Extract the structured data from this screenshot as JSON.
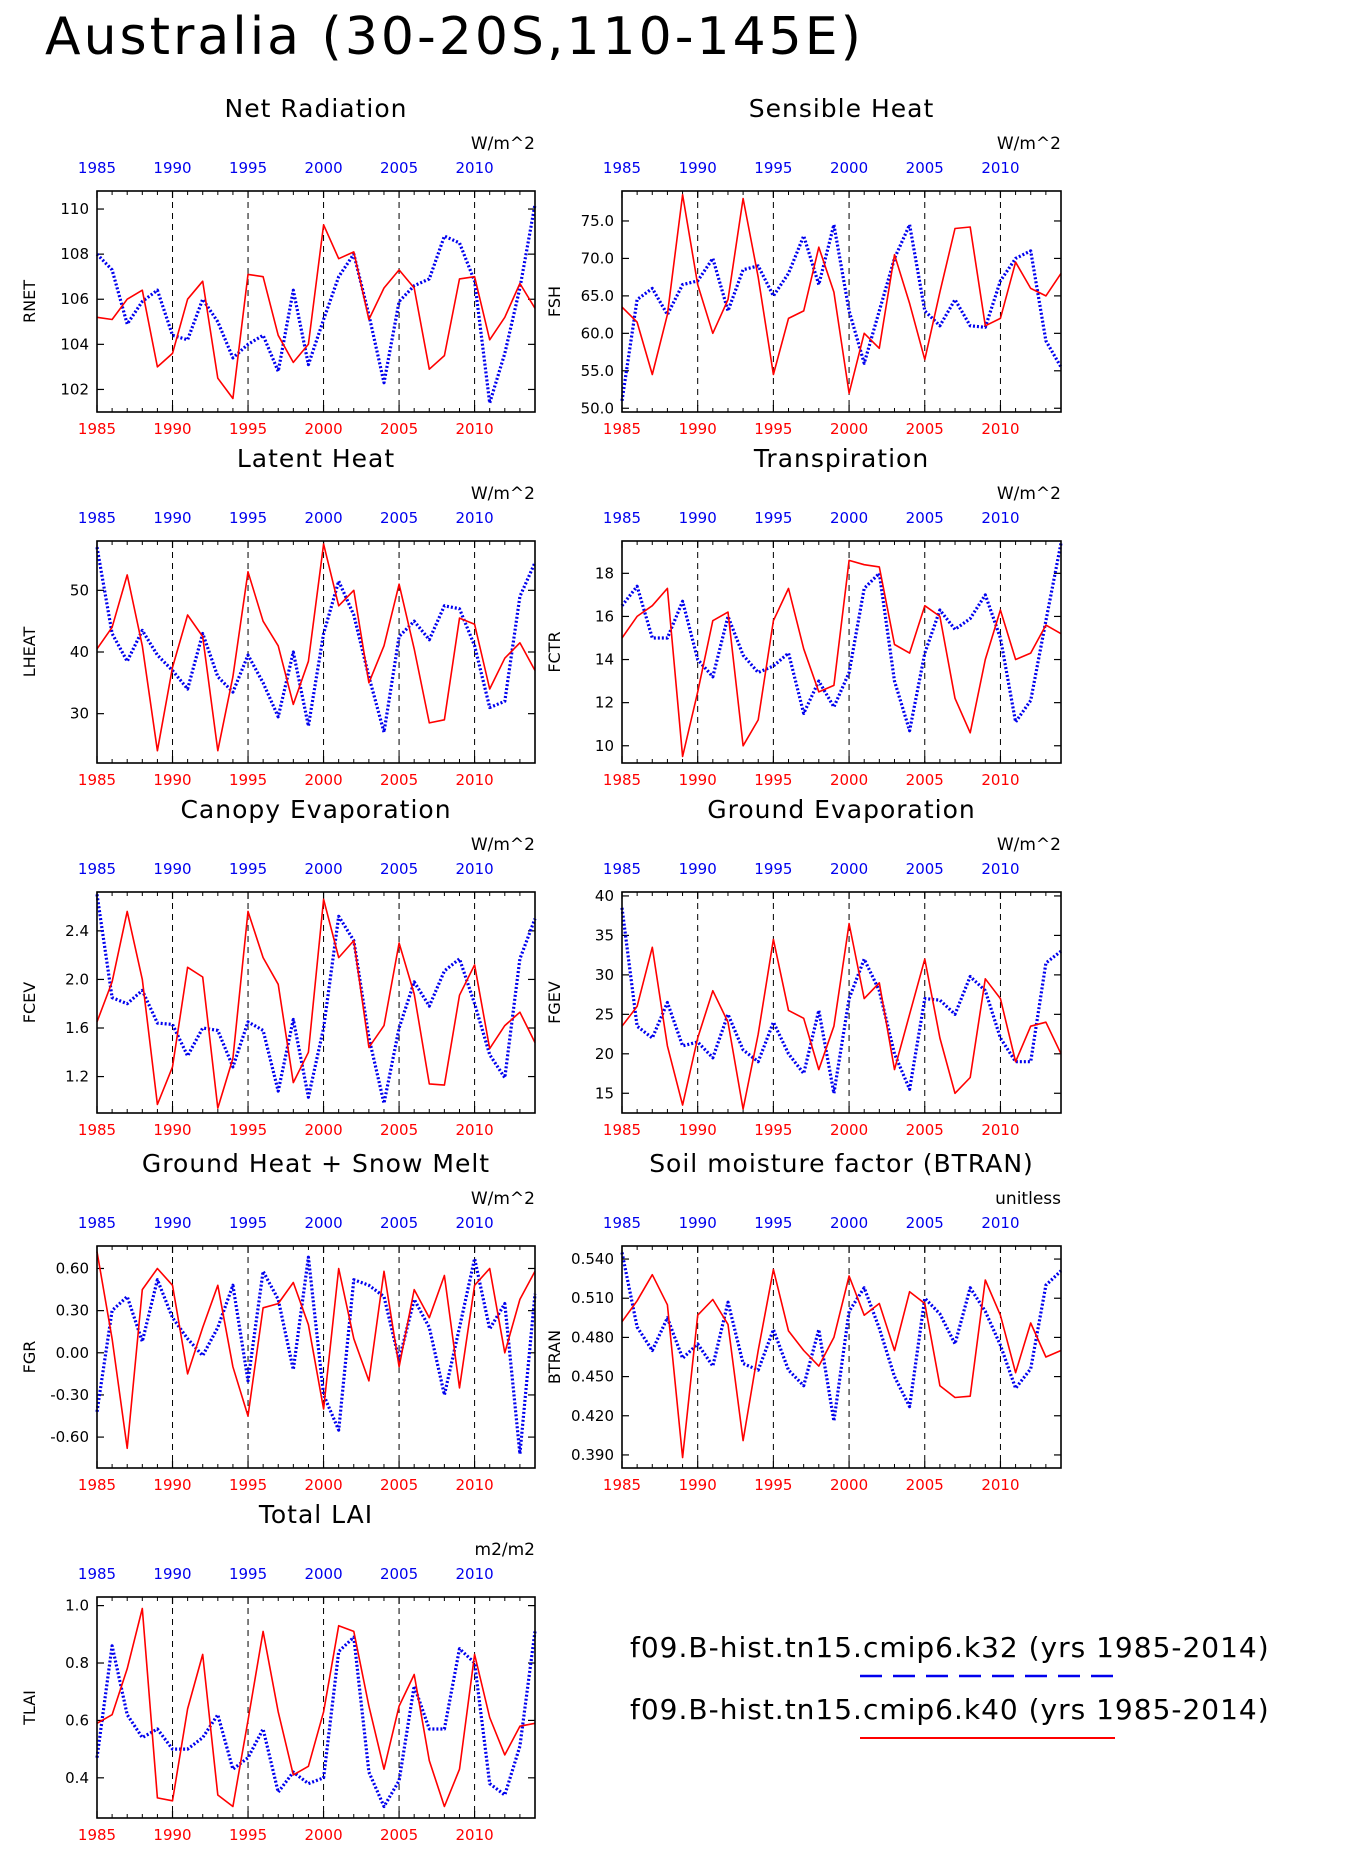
{
  "title": "Australia (30-20S,110-145E)",
  "colors": {
    "series_a": "#0000ee",
    "series_b": "#ff0000",
    "axis": "#000000"
  },
  "legend": [
    {
      "label": "f09.B-hist.tn15.cmip6.k32 (yrs 1985-2014)",
      "style": "dashed",
      "color": "#0000ee"
    },
    {
      "label": "f09.B-hist.tn15.cmip6.k40 (yrs 1985-2014)",
      "style": "solid",
      "color": "#ff0000"
    }
  ],
  "chart_data": [
    {
      "type": "line",
      "title": "Net Radiation",
      "ylabel": "RNET",
      "units": "W/m^2",
      "xlim": [
        1985,
        2014
      ],
      "ylim": [
        101,
        110.8
      ],
      "yticks": [
        "102",
        "104",
        "106",
        "108",
        "110"
      ],
      "xticks": [
        "1985",
        "1990",
        "1995",
        "2000",
        "2005",
        "2010"
      ],
      "series": [
        {
          "values": [
            108.0,
            107.3,
            104.9,
            105.9,
            106.4,
            104.4,
            104.2,
            106.0,
            105.0,
            103.4,
            104.0,
            104.4,
            102.8,
            106.4,
            103.1,
            105.1,
            107.0,
            108.0,
            105.3,
            102.3,
            105.9,
            106.6,
            106.9,
            108.8,
            108.5,
            106.8,
            101.4,
            103.6,
            106.5,
            110.2
          ]
        },
        {
          "values": [
            105.2,
            105.1,
            106.0,
            106.4,
            103.0,
            103.6,
            106.0,
            106.8,
            102.5,
            101.6,
            107.1,
            107.0,
            104.4,
            103.2,
            104.0,
            109.3,
            107.8,
            108.1,
            105.1,
            106.5,
            107.3,
            106.5,
            102.9,
            103.5,
            106.9,
            107.0,
            104.2,
            105.2,
            106.7,
            105.6
          ]
        }
      ]
    },
    {
      "type": "line",
      "title": "Sensible Heat",
      "ylabel": "FSH",
      "units": "W/m^2",
      "xlim": [
        1985,
        2014
      ],
      "ylim": [
        49.5,
        79
      ],
      "yticks": [
        "50.0",
        "55.0",
        "60.0",
        "65.0",
        "70.0",
        "75.0"
      ],
      "xticks": [
        "1985",
        "1990",
        "1995",
        "2000",
        "2005",
        "2010"
      ],
      "series": [
        {
          "values": [
            51.0,
            64.5,
            66.0,
            62.5,
            66.5,
            67.0,
            70.0,
            63.0,
            68.5,
            69.0,
            65.0,
            68.0,
            73.0,
            66.5,
            74.5,
            63.0,
            56.0,
            63.0,
            70.0,
            74.5,
            63.0,
            61.0,
            64.5,
            61.0,
            60.8,
            67.0,
            70.0,
            71.0,
            59.0,
            55.5
          ]
        },
        {
          "values": [
            63.5,
            61.5,
            54.5,
            62.5,
            78.5,
            66.5,
            60.0,
            64.5,
            78.0,
            67.5,
            54.5,
            62.0,
            63.0,
            71.5,
            65.5,
            52.0,
            60.0,
            58.0,
            70.5,
            64.0,
            56.5,
            65.5,
            74.0,
            74.2,
            61.0,
            62.0,
            69.5,
            66.0,
            65.0,
            68.0
          ]
        }
      ]
    },
    {
      "type": "line",
      "title": "Latent Heat",
      "ylabel": "LHEAT",
      "units": "W/m^2",
      "xlim": [
        1985,
        2014
      ],
      "ylim": [
        22,
        58
      ],
      "yticks": [
        "30",
        "40",
        "50"
      ],
      "xticks": [
        "1985",
        "1990",
        "1995",
        "2000",
        "2005",
        "2010"
      ],
      "series": [
        {
          "values": [
            57.0,
            43.0,
            38.5,
            43.5,
            39.5,
            37.0,
            34.0,
            43.0,
            36.0,
            33.5,
            39.5,
            35.0,
            29.5,
            40.0,
            28.0,
            43.0,
            51.5,
            46.0,
            36.0,
            27.0,
            42.5,
            45.0,
            42.0,
            47.5,
            47.0,
            41.0,
            31.0,
            32.0,
            49.0,
            54.5
          ]
        },
        {
          "values": [
            40.5,
            44.0,
            52.5,
            41.0,
            24.0,
            37.5,
            46.0,
            42.5,
            24.0,
            36.0,
            53.0,
            45.0,
            41.0,
            31.5,
            38.5,
            57.5,
            47.5,
            50.0,
            35.0,
            41.0,
            51.0,
            40.5,
            28.5,
            29.0,
            45.5,
            44.5,
            34.0,
            39.0,
            41.5,
            37.0
          ]
        }
      ]
    },
    {
      "type": "line",
      "title": "Transpiration",
      "ylabel": "FCTR",
      "units": "W/m^2",
      "xlim": [
        1985,
        2014
      ],
      "ylim": [
        9.2,
        19.5
      ],
      "yticks": [
        "10",
        "12",
        "14",
        "16",
        "18"
      ],
      "xticks": [
        "1985",
        "1990",
        "1995",
        "2000",
        "2005",
        "2010"
      ],
      "series": [
        {
          "values": [
            16.5,
            17.4,
            15.0,
            15.0,
            16.7,
            14.0,
            13.2,
            16.0,
            14.2,
            13.4,
            13.7,
            14.3,
            11.5,
            13.0,
            11.8,
            13.4,
            17.3,
            18.0,
            13.0,
            10.7,
            14.3,
            16.3,
            15.4,
            15.9,
            17.0,
            15.0,
            11.1,
            12.1,
            15.8,
            19.4
          ]
        },
        {
          "values": [
            15.0,
            16.0,
            16.5,
            17.3,
            9.5,
            12.5,
            15.8,
            16.2,
            10.0,
            11.2,
            15.8,
            17.3,
            14.5,
            12.5,
            12.8,
            18.6,
            18.4,
            18.3,
            14.7,
            14.3,
            16.5,
            16.0,
            12.2,
            10.6,
            14.0,
            16.3,
            14.0,
            14.3,
            15.6,
            15.2
          ]
        }
      ]
    },
    {
      "type": "line",
      "title": "Canopy Evaporation",
      "ylabel": "FCEV",
      "units": "W/m^2",
      "xlim": [
        1985,
        2014
      ],
      "ylim": [
        0.9,
        2.72
      ],
      "yticks": [
        "1.2",
        "1.6",
        "2.0",
        "2.4"
      ],
      "xticks": [
        "1985",
        "1990",
        "1995",
        "2000",
        "2005",
        "2010"
      ],
      "series": [
        {
          "values": [
            2.7,
            1.85,
            1.8,
            1.91,
            1.64,
            1.63,
            1.37,
            1.6,
            1.58,
            1.28,
            1.65,
            1.58,
            1.08,
            1.67,
            1.03,
            1.6,
            2.52,
            2.32,
            1.52,
            0.98,
            1.6,
            1.98,
            1.78,
            2.07,
            2.17,
            1.8,
            1.38,
            1.19,
            2.17,
            2.5
          ]
        },
        {
          "values": [
            1.65,
            1.98,
            2.56,
            2.0,
            0.97,
            1.28,
            2.1,
            2.02,
            0.94,
            1.35,
            2.56,
            2.18,
            1.96,
            1.15,
            1.4,
            2.66,
            2.18,
            2.32,
            1.44,
            1.62,
            2.3,
            1.88,
            1.14,
            1.13,
            1.87,
            2.12,
            1.43,
            1.62,
            1.73,
            1.48
          ]
        }
      ]
    },
    {
      "type": "line",
      "title": "Ground Evaporation",
      "ylabel": "FGEV",
      "units": "W/m^2",
      "xlim": [
        1985,
        2014
      ],
      "ylim": [
        12.5,
        40.5
      ],
      "yticks": [
        "15",
        "20",
        "25",
        "30",
        "35",
        "40"
      ],
      "xticks": [
        "1985",
        "1990",
        "1995",
        "2000",
        "2005",
        "2010"
      ],
      "series": [
        {
          "values": [
            38.5,
            23.5,
            22.0,
            26.5,
            21.0,
            21.5,
            19.5,
            25.0,
            20.5,
            19.0,
            24.0,
            20.0,
            17.5,
            25.5,
            15.0,
            27.0,
            32.0,
            28.0,
            20.0,
            15.5,
            27.0,
            26.8,
            25.0,
            29.8,
            28.0,
            22.0,
            19.0,
            19.0,
            31.5,
            33.0
          ]
        },
        {
          "values": [
            23.5,
            26.0,
            33.5,
            21.0,
            13.5,
            22.0,
            28.0,
            24.0,
            13.0,
            22.5,
            34.5,
            25.5,
            24.5,
            18.0,
            23.5,
            36.5,
            27.0,
            29.0,
            18.0,
            25.0,
            32.0,
            22.0,
            15.0,
            17.0,
            29.5,
            27.0,
            19.0,
            23.5,
            24.0,
            20.0
          ]
        }
      ]
    },
    {
      "type": "line",
      "title": "Ground Heat + Snow Melt",
      "ylabel": "FGR",
      "units": "W/m^2",
      "xlim": [
        1985,
        2014
      ],
      "ylim": [
        -0.82,
        0.76
      ],
      "yticks": [
        "-0.60",
        "-0.30",
        "0.00",
        "0.30",
        "0.60"
      ],
      "xticks": [
        "1985",
        "1990",
        "1995",
        "2000",
        "2005",
        "2010"
      ],
      "series": [
        {
          "values": [
            -0.42,
            0.3,
            0.4,
            0.08,
            0.52,
            0.25,
            0.1,
            -0.02,
            0.18,
            0.48,
            -0.2,
            0.58,
            0.38,
            -0.12,
            0.68,
            -0.3,
            -0.55,
            0.52,
            0.48,
            0.4,
            -0.05,
            0.38,
            0.18,
            -0.3,
            0.18,
            0.67,
            0.17,
            0.35,
            -0.72,
            0.42
          ]
        },
        {
          "values": [
            0.72,
            0.1,
            -0.68,
            0.45,
            0.6,
            0.48,
            -0.15,
            0.18,
            0.48,
            -0.1,
            -0.45,
            0.32,
            0.35,
            0.5,
            0.2,
            -0.4,
            0.6,
            0.1,
            -0.2,
            0.58,
            -0.1,
            0.45,
            0.25,
            0.55,
            -0.25,
            0.48,
            0.6,
            0.0,
            0.38,
            0.58
          ]
        }
      ]
    },
    {
      "type": "line",
      "title": "Soil moisture factor (BTRAN)",
      "ylabel": "BTRAN",
      "units": "unitless",
      "xlim": [
        1985,
        2014
      ],
      "ylim": [
        0.38,
        0.55
      ],
      "yticks": [
        "0.390",
        "0.420",
        "0.450",
        "0.480",
        "0.510",
        "0.540"
      ],
      "xticks": [
        "1985",
        "1990",
        "1995",
        "2000",
        "2005",
        "2010"
      ],
      "series": [
        {
          "values": [
            0.545,
            0.488,
            0.47,
            0.495,
            0.464,
            0.475,
            0.458,
            0.507,
            0.46,
            0.455,
            0.486,
            0.455,
            0.443,
            0.486,
            0.416,
            0.5,
            0.518,
            0.487,
            0.45,
            0.427,
            0.51,
            0.498,
            0.475,
            0.518,
            0.5,
            0.474,
            0.441,
            0.456,
            0.52,
            0.531
          ]
        },
        {
          "values": [
            0.492,
            0.508,
            0.528,
            0.505,
            0.388,
            0.497,
            0.509,
            0.49,
            0.401,
            0.47,
            0.532,
            0.485,
            0.47,
            0.458,
            0.48,
            0.527,
            0.497,
            0.506,
            0.47,
            0.515,
            0.506,
            0.443,
            0.434,
            0.435,
            0.524,
            0.497,
            0.453,
            0.491,
            0.465,
            0.47
          ]
        }
      ]
    },
    {
      "type": "line",
      "title": "Total LAI",
      "ylabel": "TLAI",
      "units": "m2/m2",
      "xlim": [
        1985,
        2014
      ],
      "ylim": [
        0.26,
        1.03
      ],
      "yticks": [
        "0.4",
        "0.6",
        "0.8",
        "1.0"
      ],
      "xticks": [
        "1985",
        "1990",
        "1995",
        "2000",
        "2005",
        "2010"
      ],
      "series": [
        {
          "values": [
            0.47,
            0.86,
            0.62,
            0.54,
            0.57,
            0.5,
            0.5,
            0.54,
            0.62,
            0.43,
            0.47,
            0.57,
            0.35,
            0.42,
            0.38,
            0.4,
            0.84,
            0.89,
            0.42,
            0.3,
            0.39,
            0.72,
            0.57,
            0.57,
            0.85,
            0.8,
            0.38,
            0.34,
            0.51,
            0.91
          ]
        },
        {
          "values": [
            0.59,
            0.62,
            0.78,
            0.99,
            0.33,
            0.32,
            0.64,
            0.83,
            0.34,
            0.3,
            0.6,
            0.91,
            0.63,
            0.41,
            0.44,
            0.63,
            0.93,
            0.91,
            0.65,
            0.43,
            0.65,
            0.76,
            0.46,
            0.3,
            0.43,
            0.83,
            0.61,
            0.48,
            0.58,
            0.59
          ]
        }
      ]
    }
  ]
}
